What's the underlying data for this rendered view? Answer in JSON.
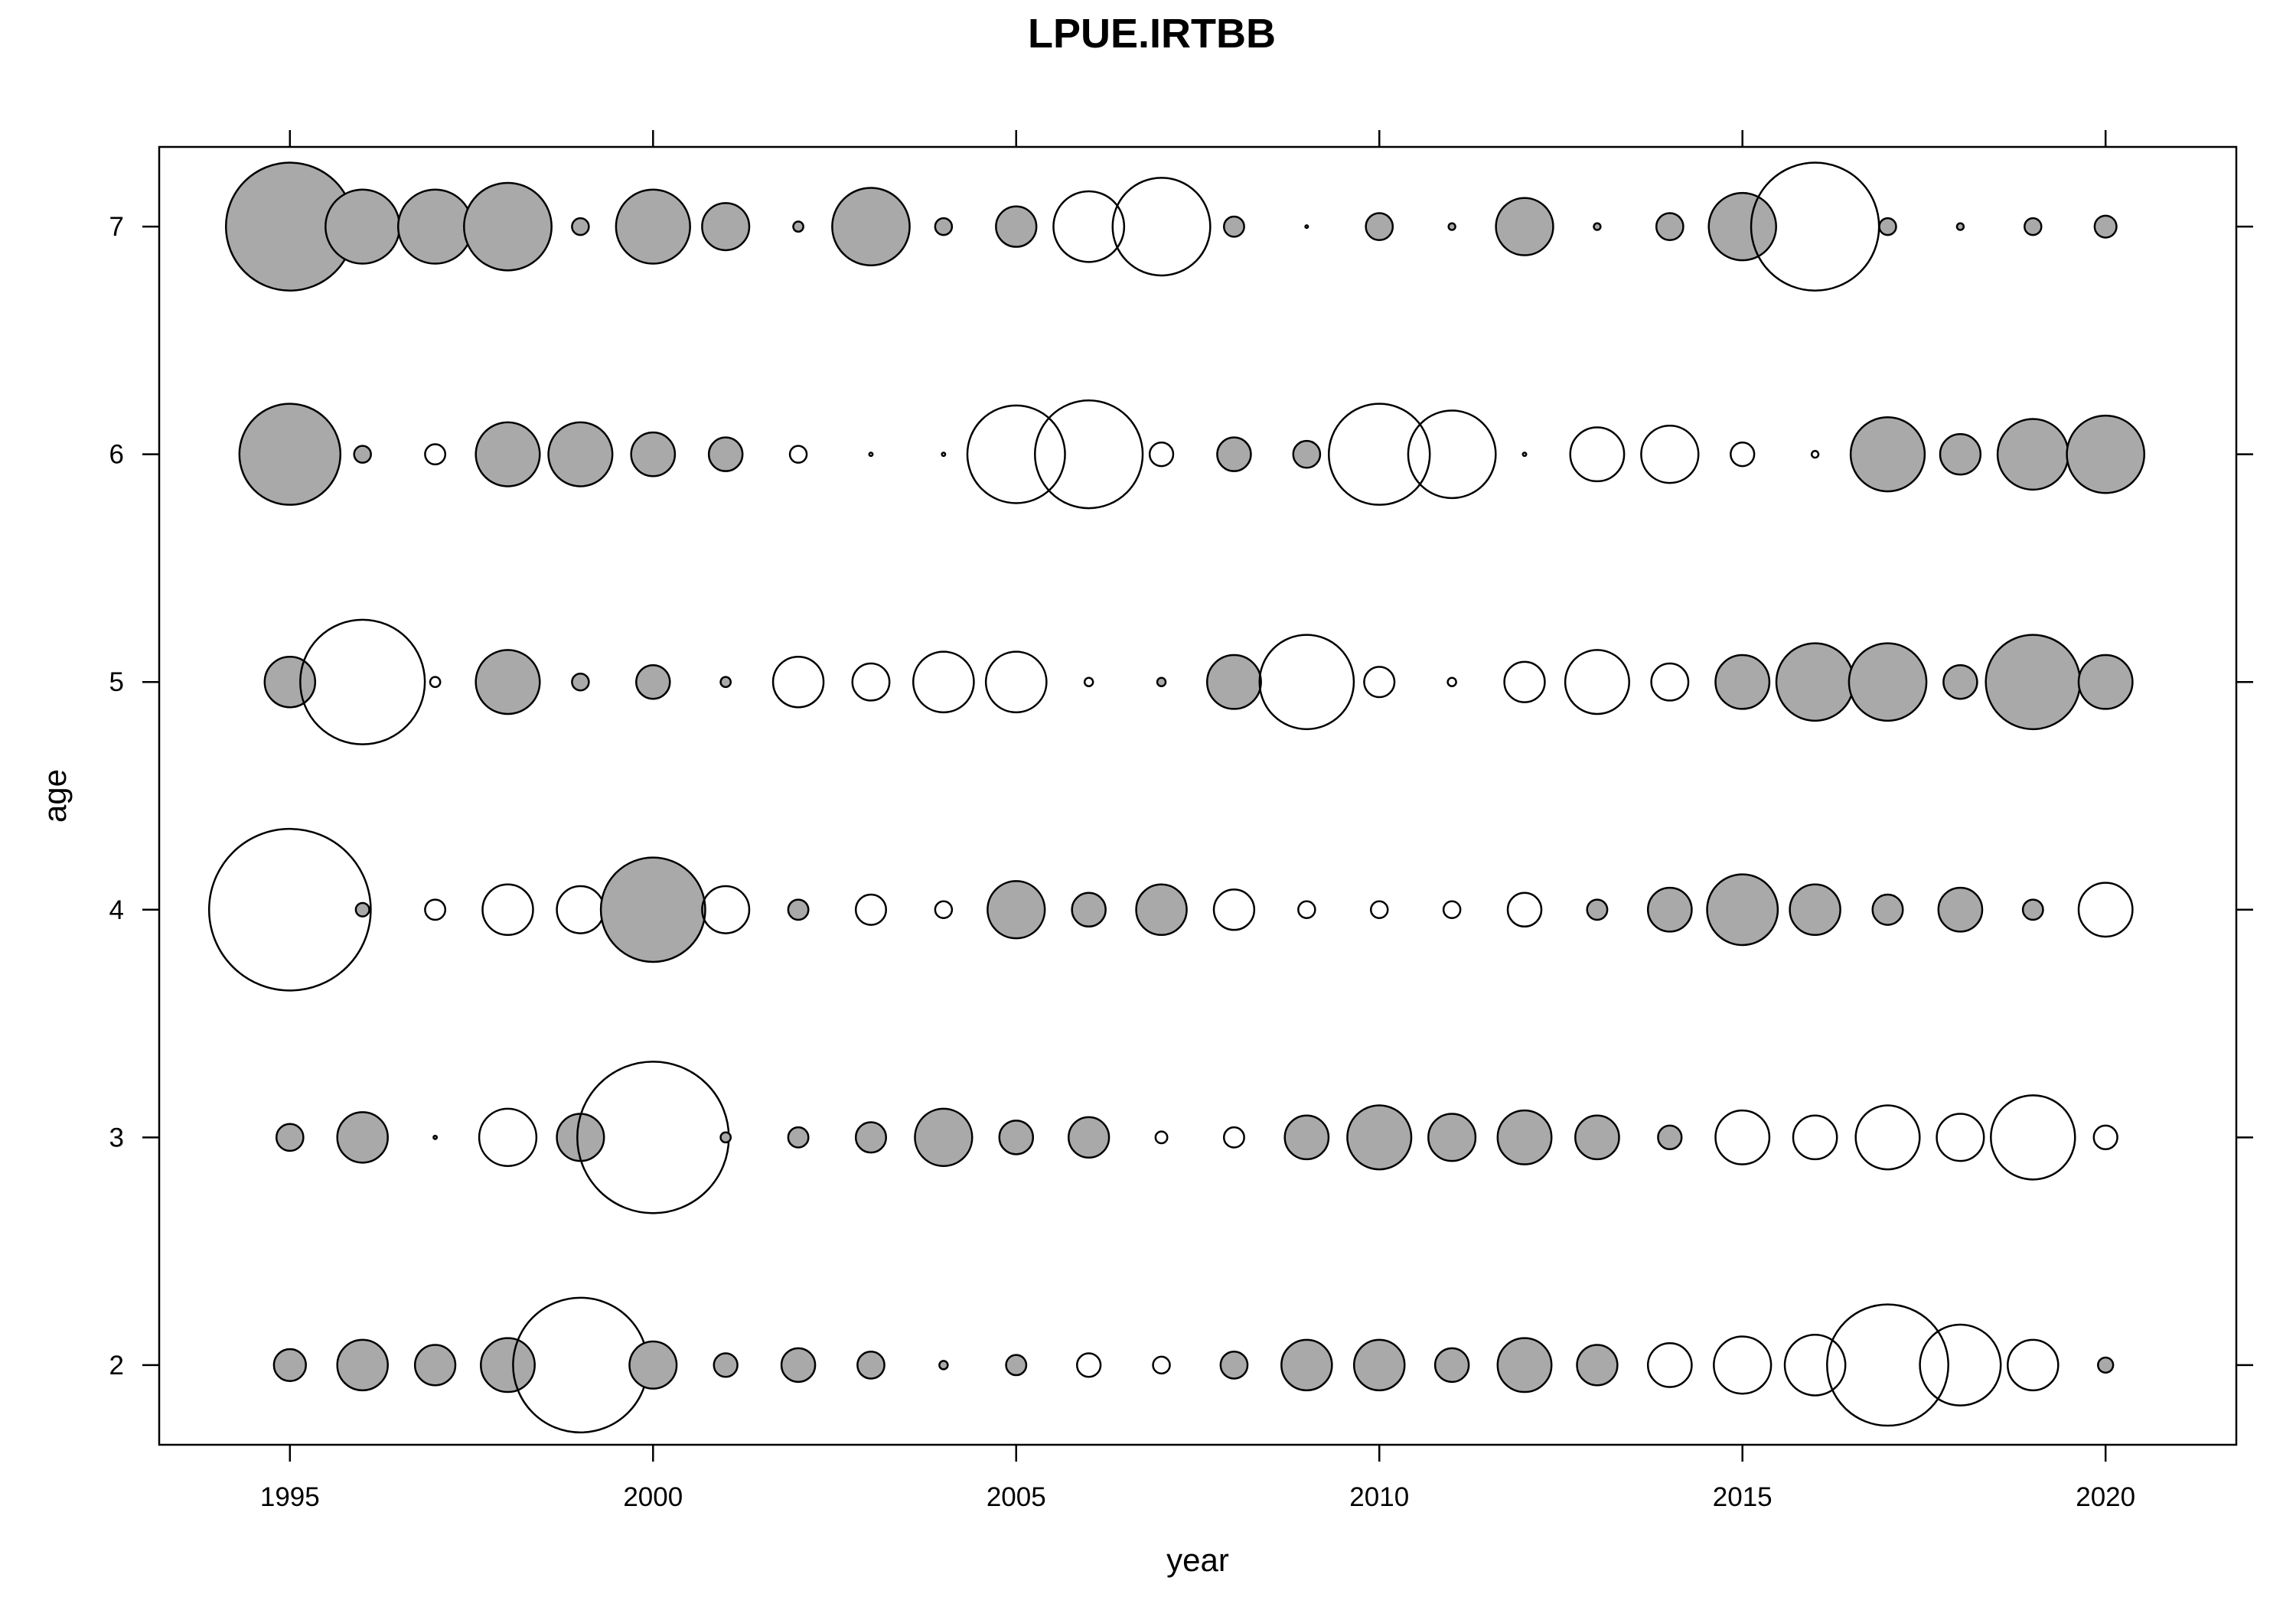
{
  "chart_data": {
    "type": "scatter",
    "title": "LPUE.IRTBB",
    "xlabel": "year",
    "ylabel": "age",
    "xlim": [
      1993.2,
      2021.8
    ],
    "ylim": [
      1.65,
      7.35
    ],
    "x_ticks": [
      1995,
      2000,
      2005,
      2010,
      2015,
      2020
    ],
    "y_ticks": [
      2,
      3,
      4,
      5,
      6,
      7
    ],
    "x_ticks_top": [
      1995,
      2000,
      2005,
      2010,
      2015,
      2020
    ],
    "y_ticks_right": [
      2,
      3,
      4,
      5,
      6,
      7
    ],
    "grid": false,
    "legend": "none",
    "encoding": "bubble radius = magnitude of residual; filled grey = positive, open = negative",
    "colors": {
      "positive_fill": "#a9a9a9",
      "negative_fill": "#ffffff",
      "outline": "#000000"
    },
    "years": [
      1995,
      1996,
      1997,
      1998,
      1999,
      2000,
      2001,
      2002,
      2003,
      2004,
      2005,
      2006,
      2007,
      2008,
      2009,
      2010,
      2011,
      2012,
      2013,
      2014,
      2015,
      2016,
      2017,
      2018,
      2019,
      2020
    ],
    "series": [
      {
        "age": 7,
        "values": [
          3.8,
          2.2,
          2.2,
          2.6,
          0.5,
          2.2,
          1.4,
          0.3,
          2.3,
          0.5,
          1.2,
          -2.1,
          -2.9,
          0.6,
          -0.08,
          0.8,
          0.2,
          1.7,
          0.2,
          0.8,
          2.0,
          -3.8,
          0.5,
          0.2,
          0.5,
          0.65
        ]
      },
      {
        "age": 6,
        "values": [
          3.0,
          0.5,
          -0.6,
          1.9,
          1.9,
          1.3,
          1.0,
          -0.5,
          -0.1,
          -0.1,
          -2.9,
          -3.2,
          -0.7,
          1.0,
          0.8,
          -3.0,
          -2.6,
          -0.1,
          -1.6,
          -1.7,
          -0.7,
          -0.2,
          2.2,
          1.2,
          2.1,
          2.3
        ]
      },
      {
        "age": 5,
        "values": [
          1.5,
          -3.7,
          -0.3,
          1.9,
          0.5,
          1.0,
          0.3,
          -1.5,
          -1.1,
          -1.8,
          -1.8,
          -0.25,
          0.25,
          1.6,
          -2.8,
          -0.9,
          -0.25,
          -1.2,
          -1.9,
          -1.1,
          1.6,
          2.3,
          2.3,
          1.0,
          2.8,
          1.6
        ]
      },
      {
        "age": 4,
        "values": [
          -4.8,
          0.4,
          -0.6,
          -1.5,
          -1.4,
          3.1,
          -1.4,
          0.6,
          -0.9,
          -0.5,
          1.7,
          1.0,
          1.5,
          -1.2,
          -0.5,
          -0.5,
          -0.5,
          -1.0,
          0.6,
          1.3,
          2.1,
          1.5,
          0.9,
          1.3,
          0.6,
          -1.6
        ]
      },
      {
        "age": 3,
        "values": [
          0.8,
          1.5,
          0.1,
          -1.7,
          1.4,
          -4.5,
          0.3,
          0.6,
          0.9,
          1.7,
          1.0,
          1.2,
          -0.35,
          -0.6,
          1.3,
          1.9,
          1.4,
          1.6,
          1.3,
          0.7,
          -1.6,
          -1.3,
          -1.9,
          -1.4,
          -2.5,
          -0.7
        ]
      },
      {
        "age": 2,
        "values": [
          0.95,
          1.5,
          1.2,
          1.6,
          -4.0,
          1.4,
          0.7,
          1.0,
          0.8,
          0.25,
          0.6,
          -0.7,
          -0.5,
          0.8,
          1.5,
          1.5,
          1.0,
          1.6,
          1.2,
          -1.3,
          -1.7,
          -1.8,
          -3.6,
          -2.4,
          -1.5,
          0.45
        ]
      }
    ]
  }
}
